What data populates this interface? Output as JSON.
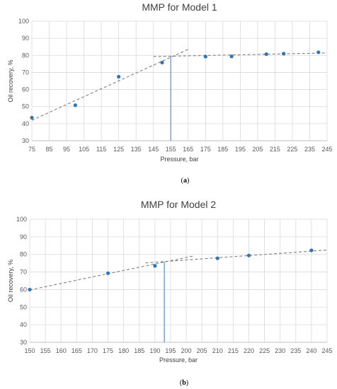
{
  "chart_data": [
    {
      "type": "scatter",
      "title": "MMP for Model 1",
      "xlabel": "Pressure, bar",
      "ylabel": "Oil recovery, %",
      "caption_letter": "a",
      "xlim": [
        75,
        245
      ],
      "ylim": [
        30,
        100
      ],
      "xticks": [
        75,
        85,
        95,
        105,
        115,
        125,
        135,
        145,
        155,
        165,
        175,
        185,
        195,
        205,
        215,
        225,
        235,
        245
      ],
      "yticks": [
        30,
        40,
        50,
        60,
        70,
        80,
        90,
        100
      ],
      "grid": true,
      "points": [
        {
          "x": 75,
          "y": 43.5
        },
        {
          "x": 100,
          "y": 50.8
        },
        {
          "x": 125,
          "y": 67.5
        },
        {
          "x": 150,
          "y": 75.8
        },
        {
          "x": 175,
          "y": 79.3
        },
        {
          "x": 190,
          "y": 79.4
        },
        {
          "x": 210,
          "y": 80.7
        },
        {
          "x": 220,
          "y": 81.0
        },
        {
          "x": 240,
          "y": 81.8
        }
      ],
      "trendlines": [
        {
          "x": [
            75,
            165
          ],
          "y": [
            42.0,
            83.5
          ]
        },
        {
          "x": [
            145,
            245
          ],
          "y": [
            79.3,
            81.4
          ]
        }
      ],
      "mmp_x": 155
    },
    {
      "type": "scatter",
      "title": "MMP for Model 2",
      "xlabel": "Pressure, bar",
      "ylabel": "Oil recovery, %",
      "caption_letter": "b",
      "xlim": [
        150,
        245
      ],
      "ylim": [
        30,
        100
      ],
      "xticks": [
        150,
        155,
        160,
        165,
        170,
        175,
        180,
        185,
        190,
        195,
        200,
        205,
        210,
        215,
        220,
        225,
        230,
        235,
        240,
        245
      ],
      "yticks": [
        30,
        40,
        50,
        60,
        70,
        80,
        90,
        100
      ],
      "grid": true,
      "points": [
        {
          "x": 150,
          "y": 60.0
        },
        {
          "x": 175,
          "y": 69.3
        },
        {
          "x": 190,
          "y": 73.5
        },
        {
          "x": 210,
          "y": 77.8
        },
        {
          "x": 220,
          "y": 79.4
        },
        {
          "x": 240,
          "y": 82.3
        }
      ],
      "trendlines": [
        {
          "x": [
            150,
            202
          ],
          "y": [
            59.8,
            79.0
          ]
        },
        {
          "x": [
            187,
            245
          ],
          "y": [
            75.2,
            82.5
          ]
        }
      ],
      "mmp_x": 193
    }
  ],
  "colors": {
    "marker": "#2e75b6",
    "trend": "#7f7f7f",
    "mmp_line": "#5b9bd5",
    "grid": "#d9d9d9"
  }
}
